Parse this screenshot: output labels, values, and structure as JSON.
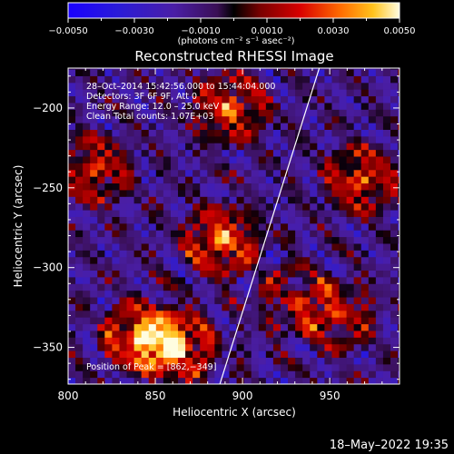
{
  "chart_data": {
    "type": "heatmap",
    "title": "Reconstructed RHESSI Image",
    "xlabel": "Heliocentric X (arcsec)",
    "ylabel": "Heliocentric Y (arcsec)",
    "xlim": [
      800,
      990
    ],
    "ylim": [
      -373,
      -175
    ],
    "x_ticks": [
      800,
      850,
      900,
      950
    ],
    "y_ticks": [
      -350,
      -300,
      -250,
      -200
    ],
    "x_tick_labels": [
      "800",
      "850",
      "900",
      "950"
    ],
    "y_tick_labels": [
      "−350",
      "−300",
      "−250",
      "−200"
    ],
    "colorbar": {
      "range": [
        -0.005,
        0.005
      ],
      "ticks": [
        -0.005,
        -0.003,
        -0.001,
        0.001,
        0.003,
        0.005
      ],
      "tick_labels": [
        "−0.0050",
        "−0.0030",
        "−0.0010",
        "0.0010",
        "0.0030",
        "0.0050"
      ],
      "units": "(photons cm⁻² s⁻¹ asec⁻²)"
    },
    "annotations": {
      "line1": "28–Oct–2014 15:42:56.000 to 15:44:04.000",
      "line2": "Detectors: 3F 6F 9F, Att 0",
      "line3": "Energy Range: 12.0 – 25.0 keV",
      "line4": "Clean    Total counts: 1.07E+03",
      "peak": "Position of Peak = [862,−349]"
    },
    "peak_position": [
      862,
      -349
    ],
    "limb_line": [
      [
        887,
        -373
      ],
      [
        944,
        -175
      ]
    ],
    "sources": [
      {
        "x": 842,
        "y": -343,
        "amp": 0.0048
      },
      {
        "x": 862,
        "y": -349,
        "amp": 0.005
      },
      {
        "x": 888,
        "y": -283,
        "amp": 0.0046
      },
      {
        "x": 893,
        "y": -200,
        "amp": 0.004
      },
      {
        "x": 815,
        "y": -238,
        "amp": 0.0035
      },
      {
        "x": 968,
        "y": -245,
        "amp": 0.0038
      },
      {
        "x": 955,
        "y": -330,
        "amp": 0.003
      },
      {
        "x": 930,
        "y": -320,
        "amp": 0.0024
      }
    ],
    "grid": false
  },
  "footer": {
    "date": "18–May–2022 19:35"
  }
}
